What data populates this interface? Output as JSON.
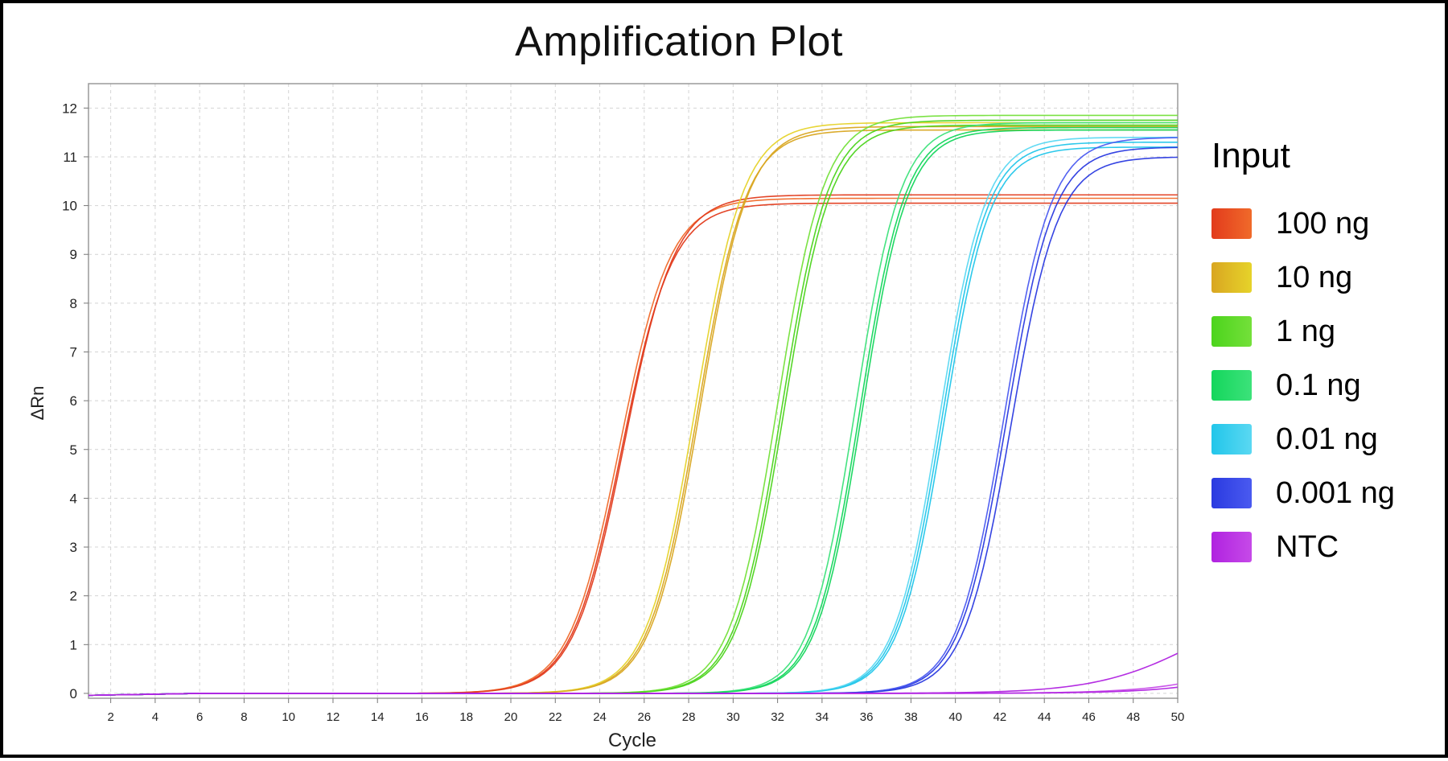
{
  "chart_data": {
    "type": "line",
    "title": "Amplification Plot",
    "xlabel": "Cycle",
    "ylabel": "ΔRn",
    "xlim": [
      1,
      50
    ],
    "ylim": [
      -0.1,
      12.5
    ],
    "x_ticks": [
      2,
      4,
      6,
      8,
      10,
      12,
      14,
      16,
      18,
      20,
      22,
      24,
      26,
      28,
      30,
      32,
      34,
      36,
      38,
      40,
      42,
      44,
      46,
      48,
      50
    ],
    "y_ticks": [
      0,
      1,
      2,
      3,
      4,
      5,
      6,
      7,
      8,
      9,
      10,
      11,
      12
    ],
    "grid": true,
    "legend": {
      "title": "Input",
      "position": "right"
    },
    "series": [
      {
        "name": "100 ng",
        "color": "#e23b1c",
        "color2": "#f06a2a",
        "replicates": [
          {
            "ct": 25.0,
            "plateau": 10.05,
            "k": 0.88
          },
          {
            "ct": 24.9,
            "plateau": 10.15,
            "k": 0.88
          },
          {
            "ct": 25.1,
            "plateau": 10.22,
            "k": 0.88
          }
        ]
      },
      {
        "name": "10 ng",
        "color": "#d9a621",
        "color2": "#e6d32a",
        "replicates": [
          {
            "ct": 28.4,
            "plateau": 11.55,
            "k": 0.92
          },
          {
            "ct": 28.3,
            "plateau": 11.7,
            "k": 0.92
          },
          {
            "ct": 28.5,
            "plateau": 11.62,
            "k": 0.92
          }
        ]
      },
      {
        "name": "1 ng",
        "color": "#4cd41c",
        "color2": "#74e03a",
        "replicates": [
          {
            "ct": 32.2,
            "plateau": 11.75,
            "k": 0.95
          },
          {
            "ct": 32.0,
            "plateau": 11.85,
            "k": 0.95
          },
          {
            "ct": 32.3,
            "plateau": 11.65,
            "k": 0.95
          }
        ]
      },
      {
        "name": "0.1 ng",
        "color": "#14d65c",
        "color2": "#3ce27a",
        "replicates": [
          {
            "ct": 35.7,
            "plateau": 11.6,
            "k": 0.98
          },
          {
            "ct": 35.5,
            "plateau": 11.7,
            "k": 0.98
          },
          {
            "ct": 35.8,
            "plateau": 11.55,
            "k": 0.98
          }
        ]
      },
      {
        "name": "0.01 ng",
        "color": "#22c6ea",
        "color2": "#5ad8f2",
        "replicates": [
          {
            "ct": 39.4,
            "plateau": 11.3,
            "k": 0.98
          },
          {
            "ct": 39.3,
            "plateau": 11.4,
            "k": 0.98
          },
          {
            "ct": 39.5,
            "plateau": 11.2,
            "k": 0.98
          }
        ]
      },
      {
        "name": "0.001 ng",
        "color": "#2a3ae0",
        "color2": "#4a5af0",
        "replicates": [
          {
            "ct": 42.3,
            "plateau": 11.2,
            "k": 0.95
          },
          {
            "ct": 42.2,
            "plateau": 11.4,
            "k": 0.95
          },
          {
            "ct": 42.5,
            "plateau": 11.0,
            "k": 0.95
          }
        ]
      },
      {
        "name": "NTC",
        "color": "#b022e0",
        "color2": "#c64ae8",
        "replicates": [
          {
            "ct": 50.8,
            "plateau": 2.0,
            "k": 0.45
          },
          {
            "ct": 55.0,
            "plateau": 2.0,
            "k": 0.45
          },
          {
            "ct": 56.0,
            "plateau": 2.0,
            "k": 0.45
          }
        ]
      }
    ]
  }
}
